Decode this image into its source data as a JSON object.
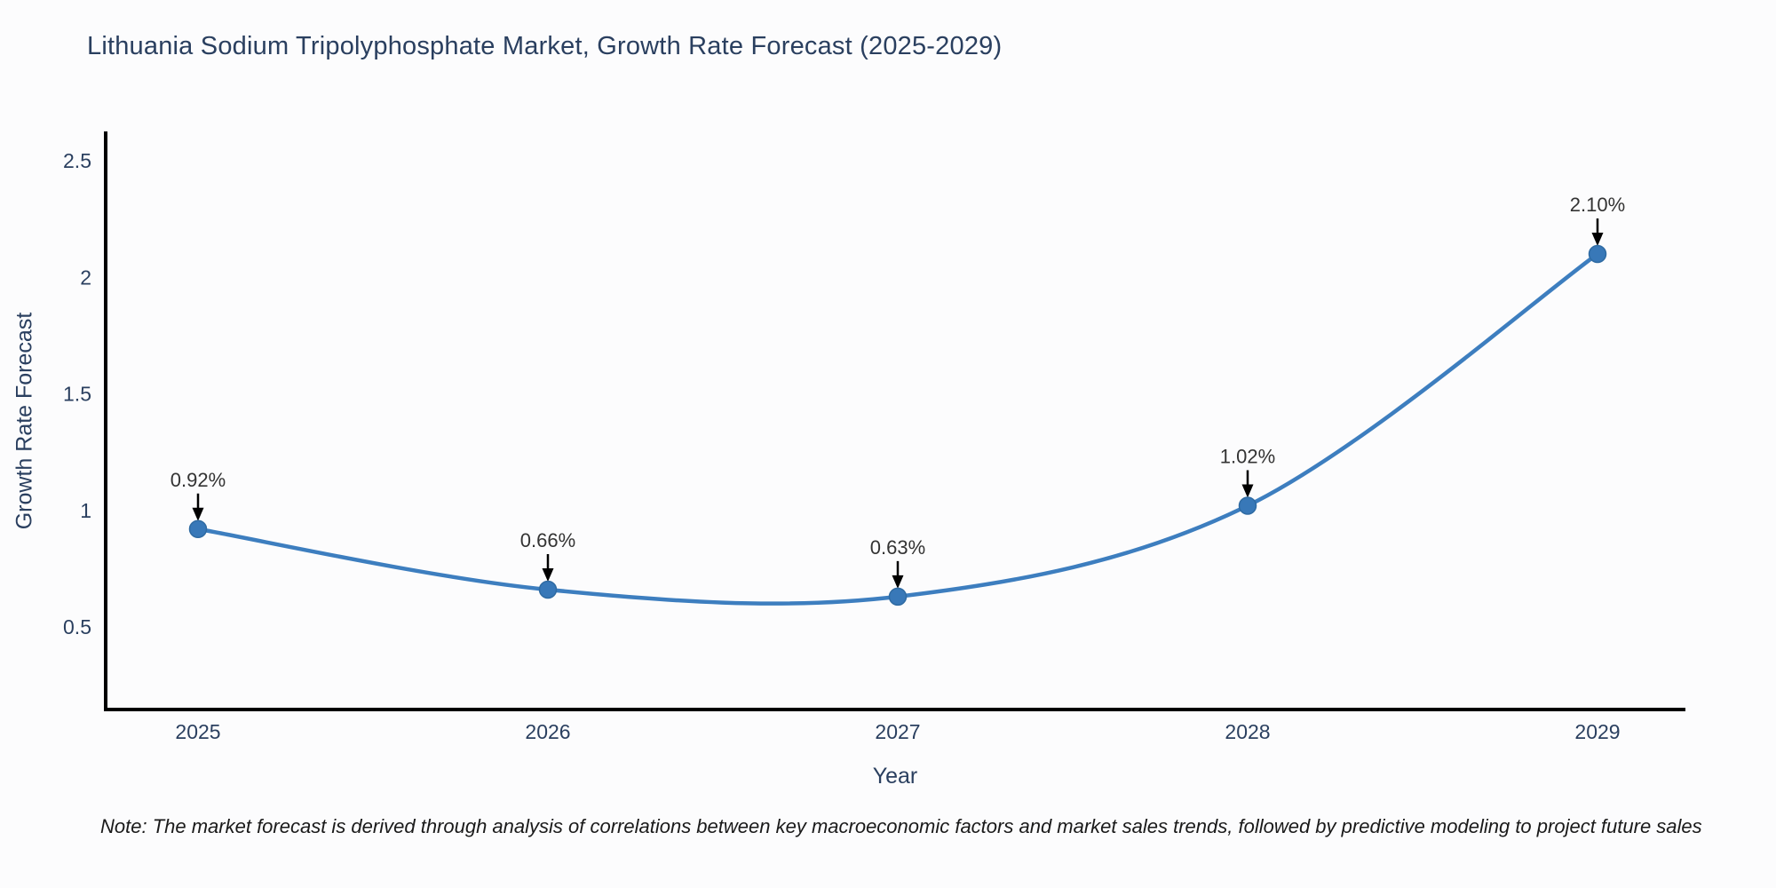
{
  "page": {
    "background": "#fcfcfd"
  },
  "note": "Note: The market forecast is derived through analysis of correlations between key macroeconomic factors and market sales trends, followed by predictive modeling to project future sales",
  "chart_data": {
    "type": "line",
    "title": "Lithuania Sodium Tripolyphosphate Market, Growth Rate Forecast (2025-2029)",
    "xlabel": "Year",
    "ylabel": "Growth Rate Forecast",
    "x": [
      2025,
      2026,
      2027,
      2028,
      2029
    ],
    "xtick_labels": [
      "2025",
      "2026",
      "2027",
      "2028",
      "2029"
    ],
    "series": [
      {
        "name": "Growth Rate Forecast",
        "values": [
          0.92,
          0.66,
          0.63,
          1.02,
          2.1
        ]
      }
    ],
    "point_labels": [
      "0.92%",
      "0.66%",
      "0.63%",
      "1.02%",
      "2.10%"
    ],
    "ytick_values": [
      0.5,
      1,
      1.5,
      2,
      2.5
    ],
    "ytick_labels": [
      "0.5",
      "1",
      "1.5",
      "2",
      "2.5"
    ],
    "ylim": [
      0.15,
      2.6
    ],
    "xlim": [
      2024.74,
      2029.25
    ],
    "grid": false,
    "legend": "none",
    "line_shape": "spline",
    "annotation_style": "value label with black down-arrow to marker",
    "colors": {
      "line": "#3d7ebf",
      "marker": "#3878b8",
      "marker_edge": "#2f6ba3",
      "arrow": "#000000",
      "annotation_text": "#333333",
      "axis_text": "#2a3f5f",
      "spine": "#000000",
      "title_text": "#2a3f5f",
      "note_text": "#1a1a1a"
    }
  }
}
